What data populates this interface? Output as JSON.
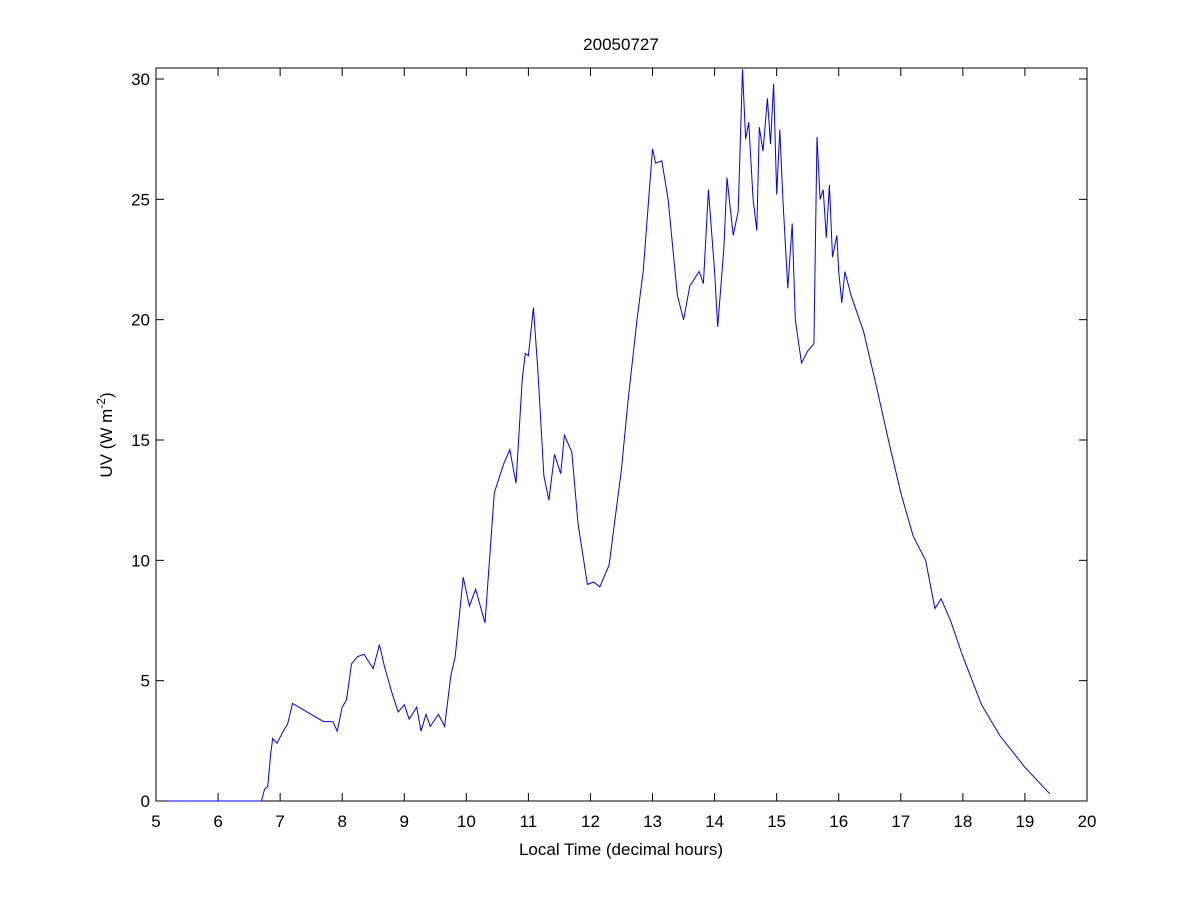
{
  "chart_data": {
    "type": "line",
    "title": "20050727",
    "xlabel": "Local Time (decimal hours)",
    "ylabel": "UV (W m",
    "ylabel_sup": "-2",
    "ylabel_end": ")",
    "xlim": [
      5,
      20
    ],
    "ylim": [
      0,
      30
    ],
    "xticks": [
      5,
      6,
      7,
      8,
      9,
      10,
      11,
      12,
      13,
      14,
      15,
      16,
      17,
      18,
      19,
      20
    ],
    "yticks": [
      0,
      5,
      10,
      15,
      20,
      25,
      30
    ],
    "grid": false,
    "line_color": "#0000ff",
    "series": [
      {
        "name": "UV",
        "points": [
          [
            5.2,
            0
          ],
          [
            6.7,
            0
          ],
          [
            6.75,
            0.5
          ],
          [
            6.8,
            0.6
          ],
          [
            6.85,
            2.0
          ],
          [
            6.88,
            2.6
          ],
          [
            6.95,
            2.4
          ],
          [
            7.05,
            2.9
          ],
          [
            7.12,
            3.2
          ],
          [
            7.2,
            4.05
          ],
          [
            7.3,
            3.9
          ],
          [
            7.5,
            3.6
          ],
          [
            7.7,
            3.3
          ],
          [
            7.85,
            3.3
          ],
          [
            7.92,
            2.9
          ],
          [
            8.0,
            3.9
          ],
          [
            8.07,
            4.2
          ],
          [
            8.15,
            5.7
          ],
          [
            8.25,
            6.0
          ],
          [
            8.35,
            6.1
          ],
          [
            8.5,
            5.5
          ],
          [
            8.6,
            6.5
          ],
          [
            8.68,
            5.6
          ],
          [
            8.8,
            4.5
          ],
          [
            8.9,
            3.7
          ],
          [
            9.0,
            4.0
          ],
          [
            9.08,
            3.4
          ],
          [
            9.2,
            3.9
          ],
          [
            9.27,
            2.9
          ],
          [
            9.35,
            3.6
          ],
          [
            9.42,
            3.1
          ],
          [
            9.55,
            3.6
          ],
          [
            9.65,
            3.1
          ],
          [
            9.75,
            5.2
          ],
          [
            9.82,
            6.0
          ],
          [
            9.95,
            9.3
          ],
          [
            10.05,
            8.1
          ],
          [
            10.15,
            8.8
          ],
          [
            10.3,
            7.4
          ],
          [
            10.45,
            12.8
          ],
          [
            10.6,
            14.0
          ],
          [
            10.7,
            14.6
          ],
          [
            10.8,
            13.2
          ],
          [
            10.9,
            17.5
          ],
          [
            10.95,
            18.6
          ],
          [
            11.0,
            18.5
          ],
          [
            11.08,
            20.5
          ],
          [
            11.15,
            18.0
          ],
          [
            11.25,
            13.5
          ],
          [
            11.33,
            12.5
          ],
          [
            11.42,
            14.4
          ],
          [
            11.52,
            13.6
          ],
          [
            11.58,
            15.2
          ],
          [
            11.7,
            14.5
          ],
          [
            11.8,
            11.5
          ],
          [
            11.95,
            9.0
          ],
          [
            12.05,
            9.1
          ],
          [
            12.15,
            8.9
          ],
          [
            12.3,
            9.8
          ],
          [
            12.5,
            13.8
          ],
          [
            12.6,
            16.5
          ],
          [
            12.75,
            20.0
          ],
          [
            12.85,
            22.0
          ],
          [
            13.0,
            27.1
          ],
          [
            13.05,
            26.5
          ],
          [
            13.15,
            26.6
          ],
          [
            13.25,
            25.0
          ],
          [
            13.4,
            21.0
          ],
          [
            13.5,
            20.0
          ],
          [
            13.6,
            21.4
          ],
          [
            13.75,
            22.0
          ],
          [
            13.82,
            21.5
          ],
          [
            13.9,
            25.4
          ],
          [
            14.0,
            22.0
          ],
          [
            14.05,
            19.7
          ],
          [
            14.15,
            23.0
          ],
          [
            14.2,
            25.9
          ],
          [
            14.3,
            23.5
          ],
          [
            14.38,
            24.5
          ],
          [
            14.45,
            30.4
          ],
          [
            14.5,
            27.5
          ],
          [
            14.55,
            28.2
          ],
          [
            14.62,
            25.0
          ],
          [
            14.68,
            23.7
          ],
          [
            14.72,
            28.0
          ],
          [
            14.78,
            27.0
          ],
          [
            14.85,
            29.2
          ],
          [
            14.9,
            27.3
          ],
          [
            14.95,
            29.8
          ],
          [
            15.0,
            25.2
          ],
          [
            15.05,
            27.9
          ],
          [
            15.1,
            25.0
          ],
          [
            15.18,
            21.3
          ],
          [
            15.25,
            24.0
          ],
          [
            15.3,
            20.0
          ],
          [
            15.4,
            18.2
          ],
          [
            15.5,
            18.7
          ],
          [
            15.6,
            19.0
          ],
          [
            15.65,
            27.6
          ],
          [
            15.7,
            25.0
          ],
          [
            15.75,
            25.4
          ],
          [
            15.8,
            23.4
          ],
          [
            15.85,
            25.6
          ],
          [
            15.9,
            22.6
          ],
          [
            15.97,
            23.5
          ],
          [
            16.0,
            22.0
          ],
          [
            16.05,
            20.7
          ],
          [
            16.1,
            22.0
          ],
          [
            16.2,
            21.0
          ],
          [
            16.4,
            19.5
          ],
          [
            16.6,
            17.3
          ],
          [
            16.8,
            15.0
          ],
          [
            17.0,
            12.8
          ],
          [
            17.2,
            11.0
          ],
          [
            17.4,
            10.0
          ],
          [
            17.55,
            8.0
          ],
          [
            17.65,
            8.4
          ],
          [
            17.8,
            7.5
          ],
          [
            18.0,
            6.0
          ],
          [
            18.3,
            4.0
          ],
          [
            18.6,
            2.7
          ],
          [
            19.0,
            1.4
          ],
          [
            19.4,
            0.3
          ]
        ]
      }
    ]
  }
}
